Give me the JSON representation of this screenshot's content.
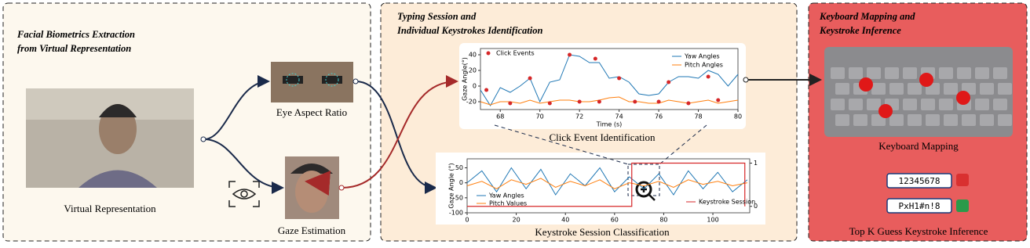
{
  "panels": [
    {
      "title_lines": [
        "Facial Biometrics Extraction",
        "from Virtual Representation"
      ],
      "captions": [
        "Virtual Representation",
        "Eye Aspect Ratio",
        "Gaze Estimation"
      ]
    },
    {
      "title_lines": [
        "Typing Session and",
        "Individual Keystrokes Identification"
      ],
      "captions": [
        "Click Event Identification",
        "Keystroke Session Classification"
      ]
    },
    {
      "title_lines": [
        "Keyboard Mapping and",
        "Keystroke Inference"
      ],
      "captions": [
        "Keyboard Mapping",
        "Top K Guess Keystroke Inference"
      ],
      "passwords": [
        "12345678",
        "PxH1#n!8"
      ]
    }
  ],
  "charts": [
    {
      "type": "line",
      "xlabel": "Time (s)",
      "ylabel": "Gaze Angle(°)",
      "xlim": [
        67,
        80
      ],
      "ylim": [
        -30,
        48
      ],
      "xticks": [
        68,
        70,
        72,
        74,
        76,
        78,
        80
      ],
      "yticks": [
        -20,
        0,
        20,
        40
      ],
      "x": [
        67,
        67.5,
        68,
        68.5,
        69,
        69.5,
        70,
        70.5,
        71,
        71.5,
        72,
        72.5,
        73,
        73.5,
        74,
        74.5,
        75,
        75.5,
        76,
        76.5,
        77,
        77.5,
        78,
        78.5,
        79,
        79.5,
        80
      ],
      "series": [
        {
          "name": "Yaw Angles",
          "color": "#1f77b4",
          "values": [
            -5,
            -25,
            -2,
            -8,
            0,
            10,
            -20,
            5,
            8,
            40,
            38,
            30,
            30,
            10,
            12,
            5,
            -10,
            -12,
            -10,
            5,
            12,
            12,
            10,
            20,
            15,
            0,
            15
          ]
        },
        {
          "name": "Pitch Angles",
          "color": "#ff7f0e",
          "values": [
            -20,
            -24,
            -20,
            -20,
            -22,
            -18,
            -22,
            -20,
            -18,
            -18,
            -20,
            -20,
            -18,
            -15,
            -14,
            -20,
            -20,
            -22,
            -22,
            -18,
            -20,
            -22,
            -20,
            -18,
            -22,
            -20,
            -18
          ]
        }
      ],
      "events": {
        "name": "Click Events",
        "color": "#d62728",
        "x": [
          67.3,
          68.5,
          69.5,
          70.5,
          71.5,
          72,
          72.8,
          73,
          74,
          74.8,
          76,
          76.5,
          77.5,
          78.5,
          79
        ],
        "values": [
          -5,
          -22,
          10,
          -22,
          40,
          -20,
          35,
          -20,
          10,
          -20,
          -20,
          5,
          -22,
          12,
          -18
        ]
      }
    },
    {
      "type": "line",
      "ylabel": "Gaze Angle (°)",
      "xlim": [
        0,
        115
      ],
      "ylim": [
        -100,
        80
      ],
      "y2lim": [
        -0.15,
        1.1
      ],
      "xticks": [
        0,
        20,
        40,
        60,
        80,
        100
      ],
      "yticks": [
        -100,
        -50,
        0,
        50
      ],
      "y2ticks": [
        0,
        1
      ],
      "x": [
        0,
        6,
        12,
        18,
        24,
        30,
        36,
        42,
        48,
        54,
        60,
        66,
        72,
        78,
        84,
        90,
        96,
        102,
        108,
        114
      ],
      "series": [
        {
          "name": "Yaw Angles",
          "color": "#1f77b4",
          "values": [
            0,
            40,
            -30,
            50,
            -20,
            45,
            -40,
            30,
            -10,
            50,
            -30,
            20,
            -20,
            30,
            -40,
            40,
            -20,
            35,
            -30,
            10
          ]
        },
        {
          "name": "Pitch Values",
          "color": "#ff7f0e",
          "values": [
            -10,
            5,
            -20,
            10,
            -5,
            15,
            -15,
            5,
            -10,
            10,
            -20,
            0,
            -10,
            5,
            -15,
            10,
            -5,
            5,
            -10,
            0
          ]
        }
      ],
      "session": {
        "name": "Keystroke Session",
        "color": "#d62728",
        "axis": "y2",
        "x": [
          0,
          67,
          67,
          113,
          113
        ],
        "values": [
          0,
          0,
          1,
          1,
          0
        ]
      }
    }
  ]
}
